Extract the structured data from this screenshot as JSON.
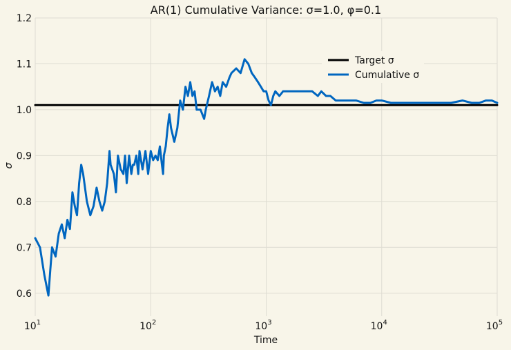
{
  "chart_data": {
    "type": "line",
    "title": "AR(1) Cumulative Variance: σ=1.0, φ=0.1",
    "xlabel": "Time",
    "ylabel": "σ",
    "xscale": "log",
    "xlim": [
      10,
      100000
    ],
    "ylim": [
      0.55,
      1.2
    ],
    "xticks": [
      {
        "value": 10,
        "base": "10",
        "exp": "1"
      },
      {
        "value": 100,
        "base": "10",
        "exp": "2"
      },
      {
        "value": 1000,
        "base": "10",
        "exp": "3"
      },
      {
        "value": 10000,
        "base": "10",
        "exp": "4"
      },
      {
        "value": 100000,
        "base": "10",
        "exp": "5"
      }
    ],
    "yticks": [
      {
        "value": 0.6,
        "label": "0.6"
      },
      {
        "value": 0.7,
        "label": "0.7"
      },
      {
        "value": 0.8,
        "label": "0.8"
      },
      {
        "value": 0.9,
        "label": "0.9"
      },
      {
        "value": 1.0,
        "label": "1.0"
      },
      {
        "value": 1.1,
        "label": "1.1"
      },
      {
        "value": 1.2,
        "label": "1.2"
      }
    ],
    "grid": true,
    "legend_position": "top-right",
    "series": [
      {
        "name": "Target σ",
        "color": "#000000",
        "x": [
          10,
          100000
        ],
        "y": [
          1.01,
          1.01
        ]
      },
      {
        "name": "Cumulative σ",
        "color": "#0066c0",
        "x": [
          10,
          11,
          12,
          13,
          13.5,
          14,
          15,
          16,
          17,
          18,
          19,
          20,
          21,
          22,
          23,
          24,
          25,
          26,
          28,
          30,
          32,
          34,
          36,
          38,
          40,
          42,
          44,
          45,
          48,
          50,
          52,
          55,
          58,
          60,
          62,
          65,
          68,
          70,
          72,
          75,
          78,
          80,
          85,
          90,
          95,
          100,
          105,
          110,
          115,
          120,
          125,
          128,
          130,
          135,
          140,
          145,
          150,
          160,
          170,
          180,
          190,
          200,
          210,
          220,
          230,
          240,
          250,
          260,
          270,
          280,
          290,
          300,
          320,
          340,
          360,
          380,
          400,
          420,
          450,
          480,
          500,
          550,
          600,
          650,
          700,
          750,
          800,
          850,
          900,
          950,
          1000,
          1050,
          1100,
          1150,
          1200,
          1300,
          1400,
          1600,
          1800,
          2000,
          2200,
          2500,
          2800,
          3000,
          3300,
          3600,
          4000,
          5000,
          6000,
          7000,
          8000,
          9000,
          10000,
          12000,
          15000,
          20000,
          25000,
          30000,
          40000,
          50000,
          60000,
          70000,
          80000,
          90000,
          100000
        ],
        "y": [
          0.72,
          0.7,
          0.64,
          0.595,
          0.65,
          0.7,
          0.68,
          0.73,
          0.75,
          0.72,
          0.76,
          0.74,
          0.82,
          0.79,
          0.77,
          0.84,
          0.88,
          0.86,
          0.8,
          0.77,
          0.79,
          0.83,
          0.8,
          0.78,
          0.8,
          0.84,
          0.91,
          0.88,
          0.86,
          0.82,
          0.9,
          0.87,
          0.86,
          0.9,
          0.84,
          0.9,
          0.86,
          0.88,
          0.88,
          0.9,
          0.86,
          0.91,
          0.87,
          0.91,
          0.86,
          0.91,
          0.89,
          0.9,
          0.89,
          0.92,
          0.88,
          0.86,
          0.9,
          0.92,
          0.96,
          0.99,
          0.96,
          0.93,
          0.96,
          1.02,
          1.0,
          1.05,
          1.03,
          1.06,
          1.03,
          1.04,
          1.0,
          1.0,
          1.0,
          0.99,
          0.98,
          1.0,
          1.03,
          1.06,
          1.04,
          1.05,
          1.03,
          1.06,
          1.05,
          1.07,
          1.08,
          1.09,
          1.08,
          1.11,
          1.1,
          1.08,
          1.07,
          1.06,
          1.05,
          1.04,
          1.04,
          1.02,
          1.01,
          1.03,
          1.04,
          1.03,
          1.04,
          1.04,
          1.04,
          1.04,
          1.04,
          1.04,
          1.03,
          1.04,
          1.03,
          1.03,
          1.02,
          1.02,
          1.02,
          1.015,
          1.015,
          1.02,
          1.02,
          1.015,
          1.015,
          1.015,
          1.015,
          1.015,
          1.015,
          1.02,
          1.015,
          1.015,
          1.02,
          1.02,
          1.015
        ]
      }
    ]
  }
}
